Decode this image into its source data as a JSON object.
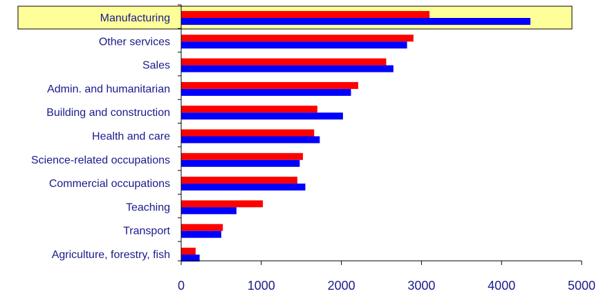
{
  "chart_data": {
    "type": "bar",
    "orientation": "horizontal",
    "title": "",
    "xlabel": "",
    "ylabel": "",
    "categories": [
      "Manufacturing",
      "Other services",
      "Sales",
      "Admin. and humanitarian",
      "Building and construction",
      "Health and care",
      "Science-related occupations",
      "Commercial occupations",
      "Teaching",
      "Transport",
      "Agriculture, forestry, fish"
    ],
    "series": [
      {
        "color": "#ff0000",
        "values": [
          3100,
          2900,
          2560,
          2210,
          1700,
          1660,
          1520,
          1450,
          1020,
          520,
          180
        ]
      },
      {
        "color": "#0000ff",
        "values": [
          4360,
          2820,
          2650,
          2120,
          2020,
          1730,
          1480,
          1550,
          690,
          500,
          230
        ]
      }
    ],
    "xlim": [
      0,
      5000
    ],
    "xticks": [
      "0",
      "1000",
      "2000",
      "3000",
      "4000",
      "5000"
    ],
    "grid": false,
    "legend": "none",
    "highlighted_category": "Manufacturing",
    "highlight_color": "#ffff99"
  }
}
